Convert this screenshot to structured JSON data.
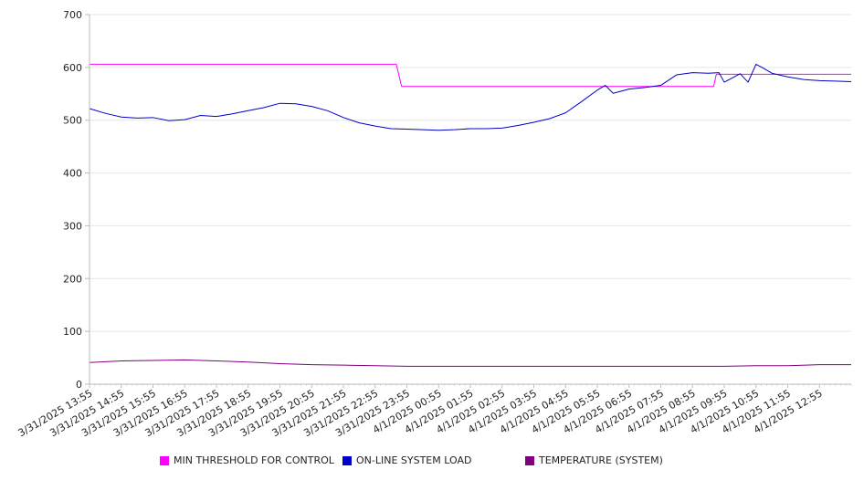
{
  "chart_data": {
    "type": "line",
    "title": "",
    "xlabel": "",
    "ylabel": "",
    "ylim": [
      0,
      700
    ],
    "y_ticks": [
      0,
      100,
      200,
      300,
      400,
      500,
      600,
      700
    ],
    "grid": "horizontal",
    "legend_position": "bottom",
    "x_start": "3/31/2025 13:55",
    "x_end": "4/1/2025 13:55",
    "x_tick_labels": [
      "3/31/2025 13:55",
      "3/31/2025 14:55",
      "3/31/2025 15:55",
      "3/31/2025 16:55",
      "3/31/2025 17:55",
      "3/31/2025 18:55",
      "3/31/2025 19:55",
      "3/31/2025 20:55",
      "3/31/2025 21:55",
      "3/31/2025 22:55",
      "3/31/2025 23:55",
      "4/1/2025 00:55",
      "4/1/2025 01:55",
      "4/1/2025 02:55",
      "4/1/2025 03:55",
      "4/1/2025 04:55",
      "4/1/2025 05:55",
      "4/1/2025 06:55",
      "4/1/2025 07:55",
      "4/1/2025 08:55",
      "4/1/2025 09:55",
      "4/1/2025 10:55",
      "4/1/2025 11:55",
      "4/1/2025 12:55"
    ],
    "series": [
      {
        "name": "MIN THRESHOLD FOR CONTROL",
        "color": "#ff00ff",
        "points": [
          [
            "3/31/2025 13:55",
            606
          ],
          [
            "3/31/2025 23:35",
            606
          ],
          [
            "3/31/2025 23:45",
            564
          ],
          [
            "4/1/2025 09:35",
            564
          ],
          [
            "4/1/2025 09:40",
            587
          ],
          [
            "4/1/2025 13:55",
            587
          ]
        ]
      },
      {
        "name": "ON-LINE SYSTEM LOAD",
        "color": "#0000cc",
        "points": [
          [
            "3/31/2025 13:55",
            522
          ],
          [
            "3/31/2025 14:25",
            513
          ],
          [
            "3/31/2025 14:55",
            506
          ],
          [
            "3/31/2025 15:25",
            504
          ],
          [
            "3/31/2025 15:55",
            505
          ],
          [
            "3/31/2025 16:25",
            499
          ],
          [
            "3/31/2025 16:55",
            501
          ],
          [
            "3/31/2025 17:25",
            509
          ],
          [
            "3/31/2025 17:55",
            507
          ],
          [
            "3/31/2025 18:25",
            512
          ],
          [
            "3/31/2025 18:55",
            518
          ],
          [
            "3/31/2025 19:25",
            524
          ],
          [
            "3/31/2025 19:55",
            532
          ],
          [
            "3/31/2025 20:25",
            531
          ],
          [
            "3/31/2025 20:55",
            526
          ],
          [
            "3/31/2025 21:25",
            518
          ],
          [
            "3/31/2025 21:55",
            505
          ],
          [
            "3/31/2025 22:25",
            495
          ],
          [
            "3/31/2025 22:55",
            489
          ],
          [
            "3/31/2025 23:25",
            484
          ],
          [
            "3/31/2025 23:55",
            483
          ],
          [
            "4/1/2025 00:25",
            482
          ],
          [
            "4/1/2025 00:55",
            481
          ],
          [
            "4/1/2025 01:25",
            482
          ],
          [
            "4/1/2025 01:55",
            484
          ],
          [
            "4/1/2025 02:25",
            484
          ],
          [
            "4/1/2025 02:55",
            485
          ],
          [
            "4/1/2025 03:25",
            490
          ],
          [
            "4/1/2025 03:55",
            496
          ],
          [
            "4/1/2025 04:25",
            503
          ],
          [
            "4/1/2025 04:55",
            514
          ],
          [
            "4/1/2025 05:25",
            535
          ],
          [
            "4/1/2025 05:55",
            557
          ],
          [
            "4/1/2025 06:10",
            566
          ],
          [
            "4/1/2025 06:25",
            551
          ],
          [
            "4/1/2025 06:55",
            559
          ],
          [
            "4/1/2025 07:25",
            562
          ],
          [
            "4/1/2025 07:55",
            566
          ],
          [
            "4/1/2025 08:25",
            586
          ],
          [
            "4/1/2025 08:55",
            590
          ],
          [
            "4/1/2025 09:25",
            589
          ],
          [
            "4/1/2025 09:45",
            590
          ],
          [
            "4/1/2025 09:55",
            572
          ],
          [
            "4/1/2025 10:25",
            588
          ],
          [
            "4/1/2025 10:40",
            572
          ],
          [
            "4/1/2025 10:55",
            606
          ],
          [
            "4/1/2025 11:10",
            598
          ],
          [
            "4/1/2025 11:25",
            589
          ],
          [
            "4/1/2025 11:55",
            582
          ],
          [
            "4/1/2025 12:25",
            577
          ],
          [
            "4/1/2025 12:55",
            575
          ],
          [
            "4/1/2025 13:25",
            574
          ],
          [
            "4/1/2025 13:55",
            573
          ]
        ]
      },
      {
        "name": "TEMPERATURE (SYSTEM)",
        "color": "#800080",
        "points": [
          [
            "3/31/2025 13:55",
            41
          ],
          [
            "3/31/2025 14:55",
            44
          ],
          [
            "3/31/2025 15:55",
            45
          ],
          [
            "3/31/2025 16:55",
            46
          ],
          [
            "3/31/2025 17:55",
            44
          ],
          [
            "3/31/2025 18:55",
            42
          ],
          [
            "3/31/2025 19:55",
            39
          ],
          [
            "3/31/2025 20:55",
            37
          ],
          [
            "3/31/2025 21:55",
            36
          ],
          [
            "3/31/2025 22:55",
            35
          ],
          [
            "3/31/2025 23:55",
            34
          ],
          [
            "4/1/2025 00:55",
            34
          ],
          [
            "4/1/2025 02:55",
            34
          ],
          [
            "4/1/2025 04:55",
            34
          ],
          [
            "4/1/2025 06:55",
            34
          ],
          [
            "4/1/2025 08:55",
            34
          ],
          [
            "4/1/2025 09:55",
            34
          ],
          [
            "4/1/2025 10:55",
            35
          ],
          [
            "4/1/2025 11:55",
            35
          ],
          [
            "4/1/2025 12:55",
            37
          ],
          [
            "4/1/2025 13:55",
            37
          ]
        ]
      }
    ]
  }
}
